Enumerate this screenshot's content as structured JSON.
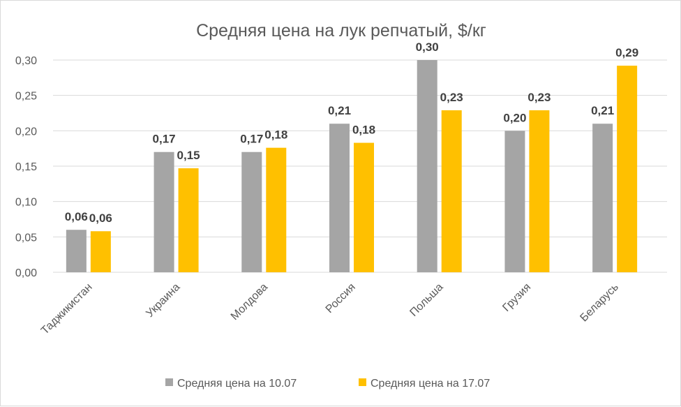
{
  "chart_data": {
    "type": "bar",
    "title": "Средняя цена на лук репчатый, $/кг",
    "xlabel": "",
    "ylabel": "",
    "ylim": [
      0,
      0.3
    ],
    "yticks": [
      "0,00",
      "0,05",
      "0,10",
      "0,15",
      "0,20",
      "0,25",
      "0,30"
    ],
    "grid": true,
    "legend_position": "bottom",
    "categories": [
      "Таджикистан",
      "Украина",
      "Молдова",
      "Россия",
      "Польша",
      "Грузия",
      "Беларусь"
    ],
    "series": [
      {
        "name": "Средняя цена на 10.07",
        "color": "#A5A5A5",
        "values": [
          0.06,
          0.17,
          0.17,
          0.21,
          0.3,
          0.2,
          0.21
        ],
        "labels": [
          "0,06",
          "0,17",
          "0,17",
          "0,21",
          "0,30",
          "0,20",
          "0,21"
        ]
      },
      {
        "name": "Средняя цена на 17.07",
        "color": "#FFC000",
        "values": [
          0.058,
          0.147,
          0.176,
          0.183,
          0.229,
          0.229,
          0.292
        ],
        "labels": [
          "0,06",
          "0,15",
          "0,18",
          "0,18",
          "0,23",
          "0,23",
          "0,29"
        ]
      }
    ]
  }
}
